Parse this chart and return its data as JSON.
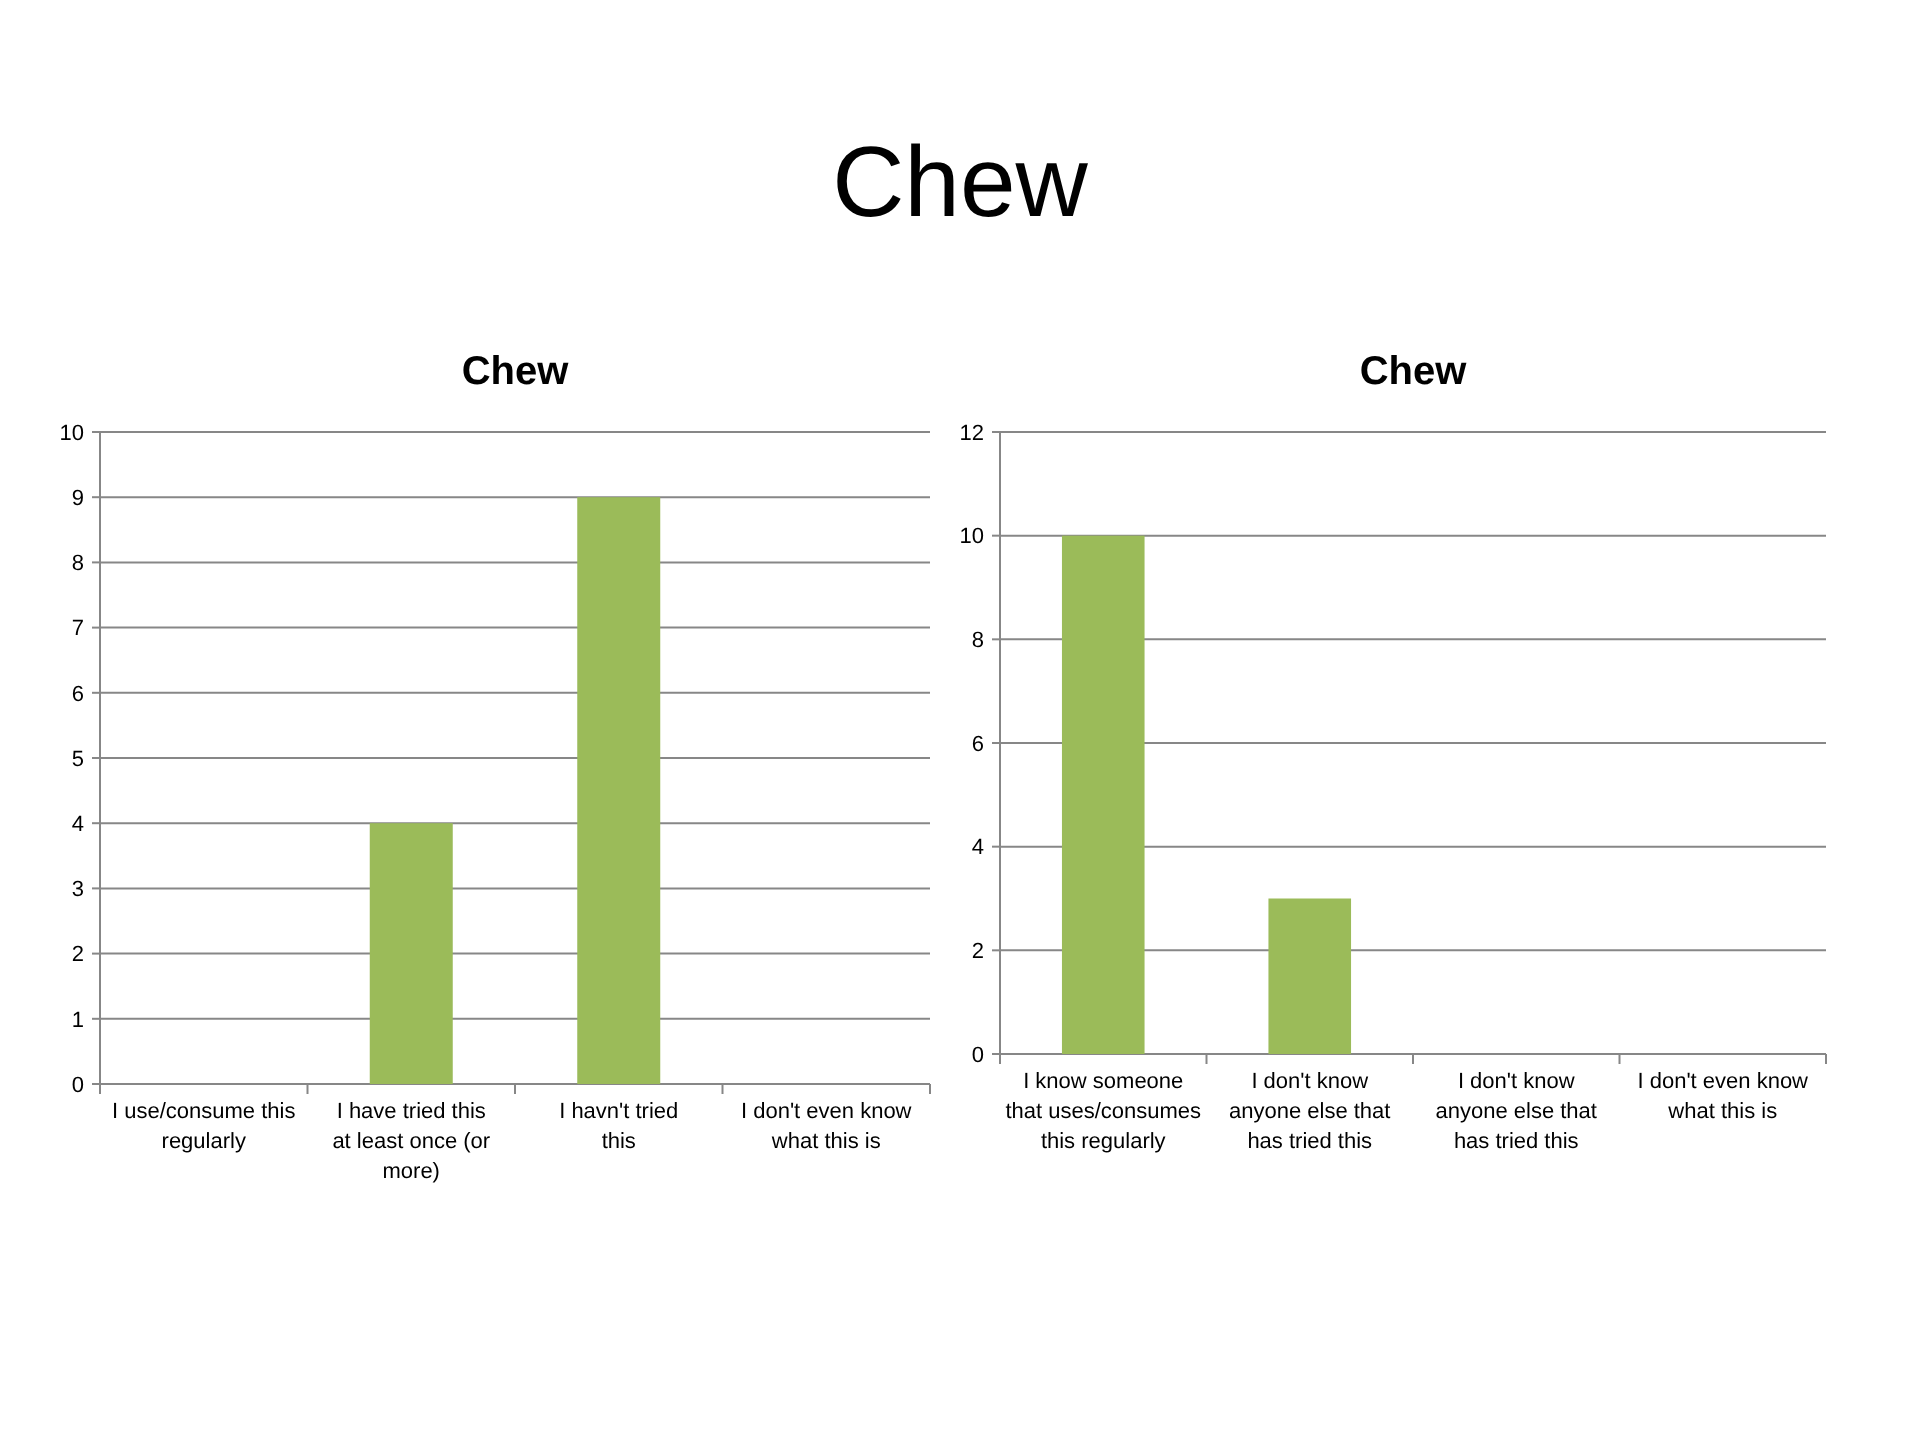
{
  "chart_data": [
    {
      "type": "other",
      "title": "Chew"
    },
    {
      "type": "bar",
      "title": "Chew",
      "categories": [
        "I use/consume this regularly",
        "I have tried this at least once (or more)",
        "I havn't tried this",
        "I don't even know what this is"
      ],
      "values": [
        0,
        4,
        9,
        0
      ],
      "color": "#9bbb59",
      "ylim": [
        0,
        10
      ],
      "yticks": [
        0,
        1,
        2,
        3,
        4,
        5,
        6,
        7,
        8,
        9,
        10
      ],
      "grid": "y"
    },
    {
      "type": "bar",
      "title": "Chew",
      "categories": [
        "I know someone that uses/consumes this regularly",
        "I don't know anyone else that has tried this",
        "I don't know anyone else that has tried this",
        "I don't even know what this is"
      ],
      "values": [
        10,
        3,
        0,
        0
      ],
      "color": "#9bbb59",
      "ylim": [
        0,
        12
      ],
      "yticks": [
        0,
        2,
        4,
        6,
        8,
        10,
        12
      ],
      "grid": "y"
    }
  ]
}
